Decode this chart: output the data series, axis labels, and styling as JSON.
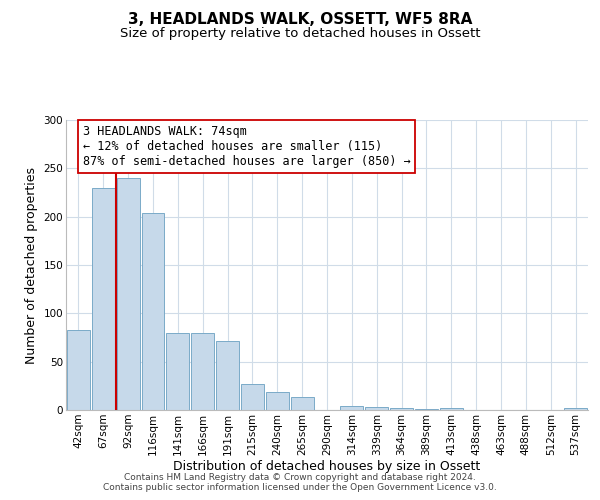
{
  "title": "3, HEADLANDS WALK, OSSETT, WF5 8RA",
  "subtitle": "Size of property relative to detached houses in Ossett",
  "xlabel": "Distribution of detached houses by size in Ossett",
  "ylabel": "Number of detached properties",
  "bin_labels": [
    "42sqm",
    "67sqm",
    "92sqm",
    "116sqm",
    "141sqm",
    "166sqm",
    "191sqm",
    "215sqm",
    "240sqm",
    "265sqm",
    "290sqm",
    "314sqm",
    "339sqm",
    "364sqm",
    "389sqm",
    "413sqm",
    "438sqm",
    "463sqm",
    "488sqm",
    "512sqm",
    "537sqm"
  ],
  "bar_heights": [
    83,
    230,
    240,
    204,
    80,
    80,
    71,
    27,
    19,
    13,
    0,
    4,
    3,
    2,
    1,
    2,
    0,
    0,
    0,
    0,
    2
  ],
  "bar_color": "#c6d9ea",
  "bar_edge_color": "#7aaac8",
  "vline_x_index": 1,
  "vline_color": "#cc0000",
  "annotation_text": "3 HEADLANDS WALK: 74sqm\n← 12% of detached houses are smaller (115)\n87% of semi-detached houses are larger (850) →",
  "annotation_box_color": "#ffffff",
  "annotation_box_edge_color": "#cc0000",
  "ylim": [
    0,
    300
  ],
  "yticks": [
    0,
    50,
    100,
    150,
    200,
    250,
    300
  ],
  "footer_text": "Contains HM Land Registry data © Crown copyright and database right 2024.\nContains public sector information licensed under the Open Government Licence v3.0.",
  "grid_color": "#d0dce8",
  "title_fontsize": 11,
  "subtitle_fontsize": 9.5,
  "axis_label_fontsize": 9,
  "tick_fontsize": 7.5,
  "annotation_fontsize": 8.5,
  "footer_fontsize": 6.5
}
